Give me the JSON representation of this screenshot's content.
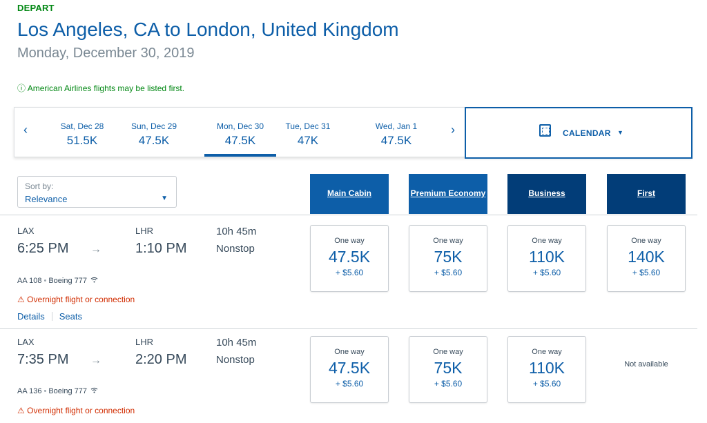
{
  "header": {
    "depart": "DEPART",
    "route": "Los Angeles, CA to London, United Kingdom",
    "date": "Monday, December 30, 2019",
    "notice_icon": "ⓘ",
    "notice": "American Airlines flights may be listed first."
  },
  "date_strip": {
    "prev_arrow": "‹",
    "next_arrow": "›",
    "days": [
      {
        "label": "Sat, Dec 28",
        "price": "51.5K",
        "selected": false
      },
      {
        "label": "Sun, Dec 29",
        "price": "47.5K",
        "selected": false
      },
      {
        "label": "Mon, Dec 30",
        "price": "47.5K",
        "selected": true
      },
      {
        "label": "Tue, Dec 31",
        "price": "47K",
        "selected": false
      },
      {
        "label": "Wed, Jan 1",
        "price": "47.5K",
        "selected": false
      }
    ],
    "calendar_label": "CALENDAR",
    "calendar_icon": "calendar-icon",
    "calendar_caret": "▼"
  },
  "sort": {
    "label": "Sort by:",
    "value": "Relevance",
    "caret": "▼"
  },
  "cabins": [
    "Main Cabin",
    "Premium Economy",
    "Business",
    "First"
  ],
  "flights": [
    {
      "origin": "LAX",
      "dest": "LHR",
      "depart_time": "6:25 PM",
      "arrow": "→",
      "arrive_time": "1:10 PM",
      "duration": "10h 45m",
      "stops": "Nonstop",
      "flight_number": "AA 108",
      "dot": "•",
      "aircraft": "Boeing 777",
      "wifi_icon": "wifi-icon",
      "warning_icon": "⚠",
      "warning": "Overnight flight or connection",
      "details_link": "Details",
      "seats_link": "Seats",
      "fares": [
        {
          "label": "One way",
          "price": "47.5K",
          "tax": "+ $5.60"
        },
        {
          "label": "One way",
          "price": "75K",
          "tax": "+ $5.60"
        },
        {
          "label": "One way",
          "price": "110K",
          "tax": "+ $5.60"
        },
        {
          "label": "One way",
          "price": "140K",
          "tax": "+ $5.60"
        }
      ]
    },
    {
      "origin": "LAX",
      "dest": "LHR",
      "depart_time": "7:35 PM",
      "arrow": "→",
      "arrive_time": "2:20 PM",
      "duration": "10h 45m",
      "stops": "Nonstop",
      "flight_number": "AA 136",
      "dot": "•",
      "aircraft": "Boeing 777",
      "wifi_icon": "wifi-icon",
      "warning_icon": "⚠",
      "warning": "Overnight flight or connection",
      "fares": [
        {
          "label": "One way",
          "price": "47.5K",
          "tax": "+ $5.60"
        },
        {
          "label": "One way",
          "price": "75K",
          "tax": "+ $5.60"
        },
        {
          "label": "One way",
          "price": "110K",
          "tax": "+ $5.60"
        }
      ],
      "not_available": "Not available"
    }
  ],
  "colors": {
    "brand_blue": "#0d5ea8",
    "dark_blue": "#023d78",
    "green": "#008712",
    "warning_red": "#d12c00"
  }
}
